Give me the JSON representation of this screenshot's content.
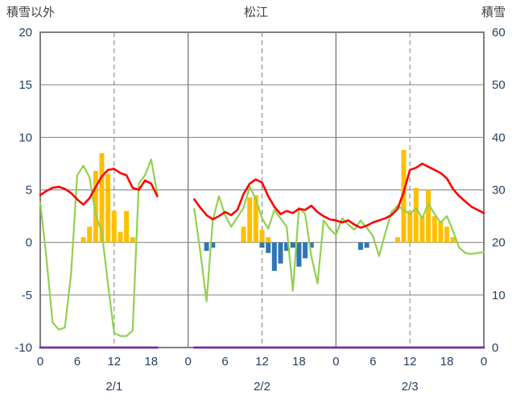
{
  "header": {
    "left_axis_title": "積雪以外",
    "chart_title": "松江",
    "right_axis_title": "積雪"
  },
  "colors": {
    "grid": "#808080",
    "border": "#7F7F7F",
    "axis_text": "#243F60",
    "title_text": "#3F3F3F",
    "orange_bar": "#FFC000",
    "blue_bar": "#2E75B6",
    "red_line": "#FF0000",
    "green_line": "#92D050",
    "purple_line": "#7030A0"
  },
  "chart_data": {
    "type": "bar+line",
    "title": "松江",
    "left_axis": {
      "label": "積雪以外",
      "min": -10,
      "max": 20,
      "tick_step": 5,
      "ticks": [
        20,
        15,
        10,
        5,
        0,
        -5,
        -10
      ]
    },
    "right_axis": {
      "label": "積雪",
      "min": 0,
      "max": 60,
      "tick_step": 10,
      "ticks": [
        60,
        50,
        40,
        30,
        20,
        10,
        0
      ]
    },
    "x_axis": {
      "hours_total": 72,
      "tick_interval": 6,
      "tick_labels": [
        "0",
        "6",
        "12",
        "18",
        "0",
        "6",
        "12",
        "18",
        "0",
        "6",
        "12",
        "18",
        "0"
      ],
      "day_labels": [
        "2/1",
        "2/2",
        "2/3"
      ],
      "day_label_hours": [
        12,
        36,
        60
      ],
      "solid_gridline_hours": [
        24,
        48
      ],
      "dashed_gridline_hours": [
        12,
        36,
        60
      ]
    },
    "series": [
      {
        "name": "orange-bars",
        "type": "bar",
        "axis": "left",
        "color": "#FFC000",
        "values": [
          0,
          0,
          0,
          0,
          0,
          0,
          0,
          0.5,
          1.5,
          6.8,
          8.5,
          6.5,
          3,
          1,
          3,
          0.5,
          0,
          0,
          0,
          0,
          0,
          0,
          0,
          0,
          0,
          0,
          0,
          0,
          0,
          0,
          0,
          0,
          0,
          1.5,
          4.3,
          4.5,
          1.2,
          0.5,
          0,
          0,
          0,
          0,
          0,
          0,
          0,
          0,
          0,
          0,
          0,
          0,
          0,
          0,
          0,
          0,
          0,
          0,
          0,
          0,
          0.5,
          8.8,
          3,
          5.2,
          2.5,
          5,
          2.5,
          2,
          1.5,
          0.5,
          0,
          0,
          0,
          0,
          0
        ]
      },
      {
        "name": "blue-bars",
        "type": "bar",
        "axis": "left",
        "color": "#2E75B6",
        "values": [
          0,
          0,
          0,
          0,
          0,
          0,
          0,
          0,
          0,
          0,
          0,
          0,
          0,
          0,
          0,
          0,
          0,
          0,
          0,
          0,
          0,
          0,
          0,
          0,
          0,
          0,
          0,
          -0.8,
          -0.5,
          0,
          0,
          0,
          0,
          0,
          0,
          0,
          -0.5,
          -1,
          -2.7,
          -2,
          -0.8,
          -0.5,
          -2.3,
          -1.5,
          -0.5,
          0,
          0,
          0,
          0,
          0,
          0,
          0,
          -0.7,
          -0.5,
          0,
          0,
          0,
          0,
          0,
          0,
          0,
          0,
          0,
          0,
          0,
          0,
          0,
          0,
          0,
          0,
          0,
          0,
          0
        ]
      },
      {
        "name": "green-line",
        "type": "line",
        "axis": "left",
        "color": "#92D050",
        "stroke_width": 2.2,
        "values": [
          3.8,
          -1.5,
          -7.6,
          -8.3,
          -8.1,
          -3,
          6.4,
          7.3,
          6.2,
          2.6,
          1,
          -4,
          -8.6,
          -8.9,
          -8.9,
          -8.4,
          5.6,
          6.4,
          7.9,
          4.6,
          null,
          null,
          null,
          null,
          null,
          3.2,
          -1,
          -5.6,
          2.1,
          4.4,
          2.6,
          1.5,
          2.4,
          3.3,
          5.3,
          4.1,
          2.3,
          1.3,
          3.1,
          2.3,
          1.5,
          -4.6,
          3.3,
          2.7,
          -1.3,
          -3.9,
          2.1,
          1.3,
          0.7,
          2.3,
          1.7,
          1.2,
          2.1,
          1.4,
          0.6,
          -1.3,
          0.9,
          2.9,
          3.5,
          3.1,
          2.7,
          3.3,
          2.3,
          3.7,
          2.7,
          1.9,
          2.5,
          1.1,
          -0.5,
          -1,
          -1.1,
          -1,
          -0.9
        ]
      },
      {
        "name": "red-line",
        "type": "line",
        "axis": "left",
        "color": "#FF0000",
        "stroke_width": 2.6,
        "values": [
          4.5,
          4.9,
          5.2,
          5.3,
          5.1,
          4.7,
          4.1,
          3.6,
          4.2,
          5.3,
          6.3,
          6.9,
          7,
          6.6,
          6.4,
          5.2,
          5,
          5.9,
          5.6,
          4.4,
          null,
          null,
          null,
          null,
          null,
          4.1,
          3.3,
          2.6,
          2.2,
          2.5,
          2.9,
          2.6,
          3.1,
          4.6,
          5.6,
          6,
          5.7,
          4.4,
          3.4,
          2.7,
          3,
          2.8,
          3.2,
          3.1,
          3.5,
          2.9,
          2.5,
          2.2,
          2.1,
          1.9,
          2.1,
          1.7,
          1.4,
          1.6,
          1.9,
          2.1,
          2.3,
          2.6,
          3.2,
          4.8,
          6.9,
          7.1,
          7.5,
          7.2,
          6.9,
          6.6,
          6.1,
          5.1,
          4.4,
          3.9,
          3.4,
          3.1,
          2.8
        ]
      },
      {
        "name": "snow-depth-line",
        "type": "line",
        "axis": "right",
        "color": "#7030A0",
        "stroke_width": 2.8,
        "values": [
          0,
          0,
          0,
          0,
          0,
          0,
          0,
          0,
          0,
          0,
          0,
          0,
          0,
          0,
          0,
          0,
          0,
          0,
          0,
          0,
          null,
          null,
          null,
          null,
          null,
          0,
          0,
          0,
          0,
          0,
          0,
          0,
          0,
          0,
          0,
          0,
          0,
          0,
          0,
          0,
          0,
          0,
          0,
          0,
          0,
          0,
          0,
          0,
          0,
          0,
          0,
          0,
          0,
          0,
          0,
          0,
          0,
          0,
          0,
          0,
          0,
          0,
          0,
          0,
          0,
          0,
          0,
          0,
          0,
          0,
          0,
          0,
          0
        ]
      }
    ]
  }
}
